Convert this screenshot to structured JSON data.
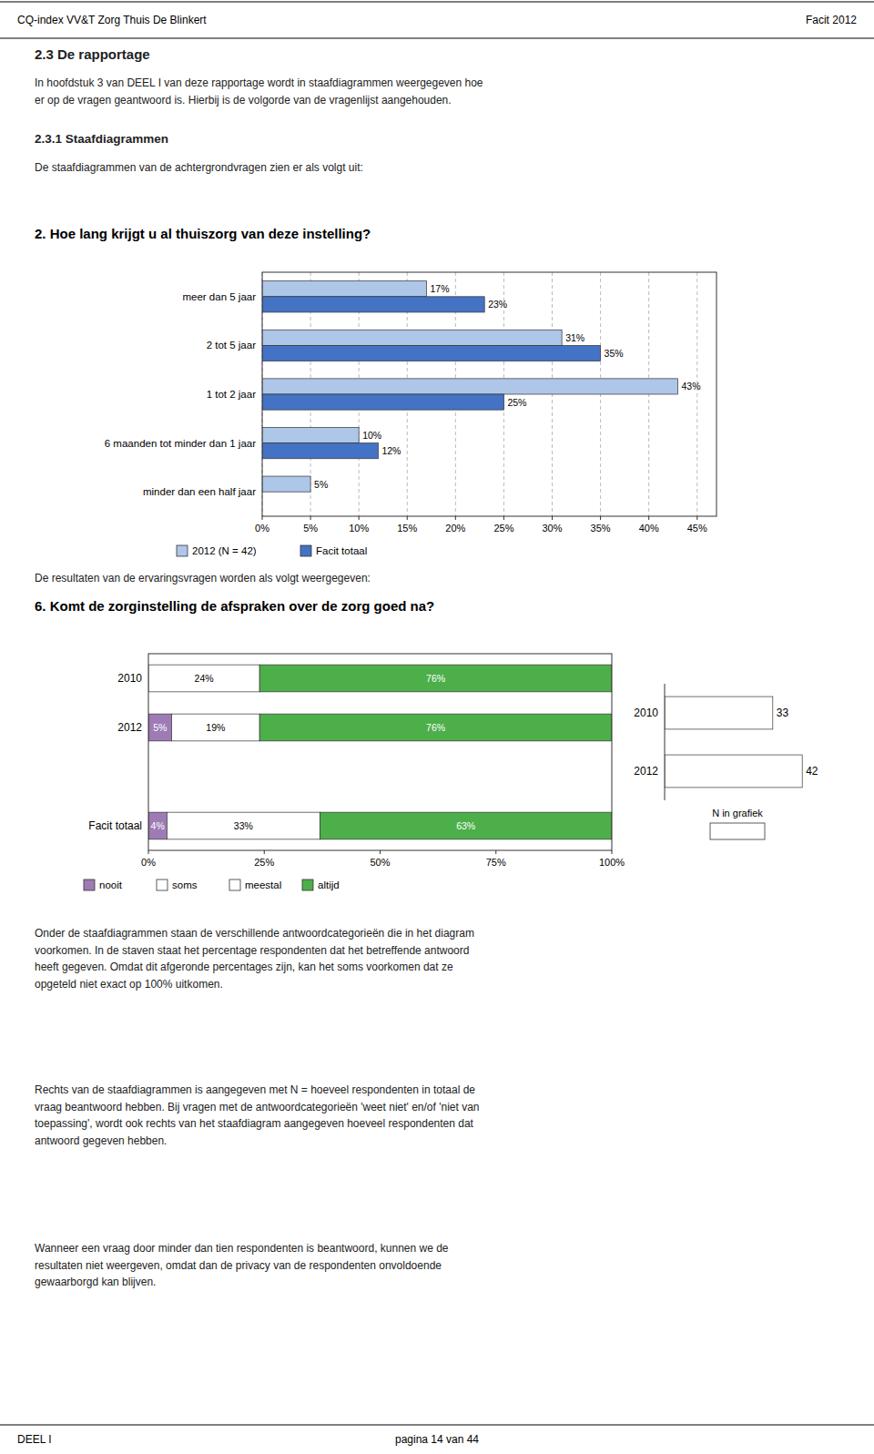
{
  "page": {
    "header_left": "CQ-index VV&T Zorg Thuis De Blinkert",
    "header_right": "Facit 2012",
    "footer_left": "DEEL I",
    "footer_center": "pagina 14 van 44",
    "section_title": "2.3   De rapportage",
    "section_body1": "In hoofdstuk 3 van DEEL I van deze rapportage wordt in staafdiagrammen weergegeven hoe\ner op de vragen geantwoord is. Hierbij is de volgorde van de vragenlijst aangehouden.",
    "section_sub": "2.3.1  Staafdiagrammen",
    "section_body2": "De staafdiagrammen van de achtergrondvragen zien er als volgt uit:",
    "section_body3": "De resultaten van de ervaringsvragen worden als volgt weergegeven:",
    "body_text1": "Onder de staafdiagrammen staan de verschillende antwoordcategorieën die in het diagram\nvoorkomen. In de staven staat het percentage respondenten dat het betreffende antwoord\nheeft gegeven. Omdat dit afgeronde percentages zijn, kan het soms voorkomen dat ze\nopgeteld niet exact op 100% uitkomen.",
    "body_text2": "Rechts van de staafdiagrammen is aangegeven met N = hoeveel respondenten in totaal de\nvraag beantwoord hebben. Bij vragen met de antwoordcategorieën 'weet niet' en/of 'niet van\ntoepassing', wordt ook rechts van het staafdiagram aangegeven hoeveel respondenten dat\nantwoord gegeven hebben.",
    "body_text3": "Wanneer een vraag door minder dan tien respondenten is beantwoord, kunnen we de\nresultaten niet weergeven, omdat dan de privacy van de respondenten onvoldoende\ngewaarborgd kan blijven."
  },
  "chart_data": [
    {
      "type": "bar",
      "orientation": "horizontal",
      "title": "2. Hoe lang krijgt u al thuiszorg van deze instelling?",
      "categories": [
        "meer dan 5 jaar",
        "2 tot 5 jaar",
        "1 tot 2 jaar",
        "6 maanden tot minder dan 1 jaar",
        "minder dan een half jaar"
      ],
      "series": [
        {
          "name": "2012 (N = 42)",
          "color": "#aec6e8",
          "values": [
            17,
            31,
            43,
            10,
            5
          ],
          "value_labels": [
            "17%",
            "31%",
            "43%",
            "10%",
            "5%"
          ]
        },
        {
          "name": "Facit totaal",
          "color": "#4472c4",
          "values": [
            23,
            35,
            25,
            12,
            0
          ],
          "value_labels": [
            "23%",
            "35%",
            "25%",
            "12%",
            null
          ]
        }
      ],
      "xlim": [
        0,
        47
      ],
      "xticks": [
        {
          "value": 0,
          "label": "0%"
        },
        {
          "value": 5,
          "label": "5%"
        },
        {
          "value": 10,
          "label": "10%"
        },
        {
          "value": 15,
          "label": "15%"
        },
        {
          "value": 20,
          "label": "20%"
        },
        {
          "value": 25,
          "label": "25%"
        },
        {
          "value": 30,
          "label": "30%"
        },
        {
          "value": 35,
          "label": "35%"
        },
        {
          "value": 40,
          "label": "40%"
        },
        {
          "value": 45,
          "label": "45%"
        }
      ],
      "grid": true,
      "data_labels": true,
      "legend": "bottom"
    },
    {
      "type": "bar",
      "orientation": "horizontal",
      "stacked": true,
      "title": "6. Komt de zorginstelling de afspraken over de zorg goed na?",
      "categories": [
        "2010",
        "2012",
        null,
        "Facit totaal"
      ],
      "series": [
        {
          "name": "nooit",
          "color": "#9e7bb5",
          "values": [
            0,
            5,
            0,
            4
          ],
          "value_labels": [
            null,
            "5%",
            null,
            "4%"
          ]
        },
        {
          "name": "soms",
          "color": "white",
          "values": [
            24,
            19,
            0,
            33
          ],
          "value_labels": [
            "24%",
            "19%",
            null,
            "33%"
          ]
        },
        {
          "name": "meestal",
          "color": "white",
          "values": [
            null,
            null,
            null,
            null
          ]
        },
        {
          "name": "altijd",
          "color": "#4daf4a",
          "values": [
            76,
            76,
            0,
            63
          ],
          "value_labels": [
            "76%",
            "76%",
            null,
            "63%"
          ]
        }
      ],
      "xlim": [
        0,
        100
      ],
      "xticks": [
        {
          "value": 0,
          "label": "0%"
        },
        {
          "value": 25,
          "label": "25%"
        },
        {
          "value": 50,
          "label": "50%"
        },
        {
          "value": 75,
          "label": "75%"
        },
        {
          "value": 100,
          "label": "100%"
        }
      ],
      "grid": false,
      "data_labels": true,
      "legend": "bottom"
    },
    {
      "type": "bar",
      "orientation": "horizontal",
      "categories": [
        "2010",
        "2012"
      ],
      "series": [
        {
          "name": "N in grafiek",
          "color": "white",
          "values": [
            33,
            42
          ]
        }
      ],
      "xlim": [
        0,
        50
      ],
      "grid": false,
      "data_labels": true,
      "tick_labels": "y",
      "legend": "bottom"
    }
  ]
}
